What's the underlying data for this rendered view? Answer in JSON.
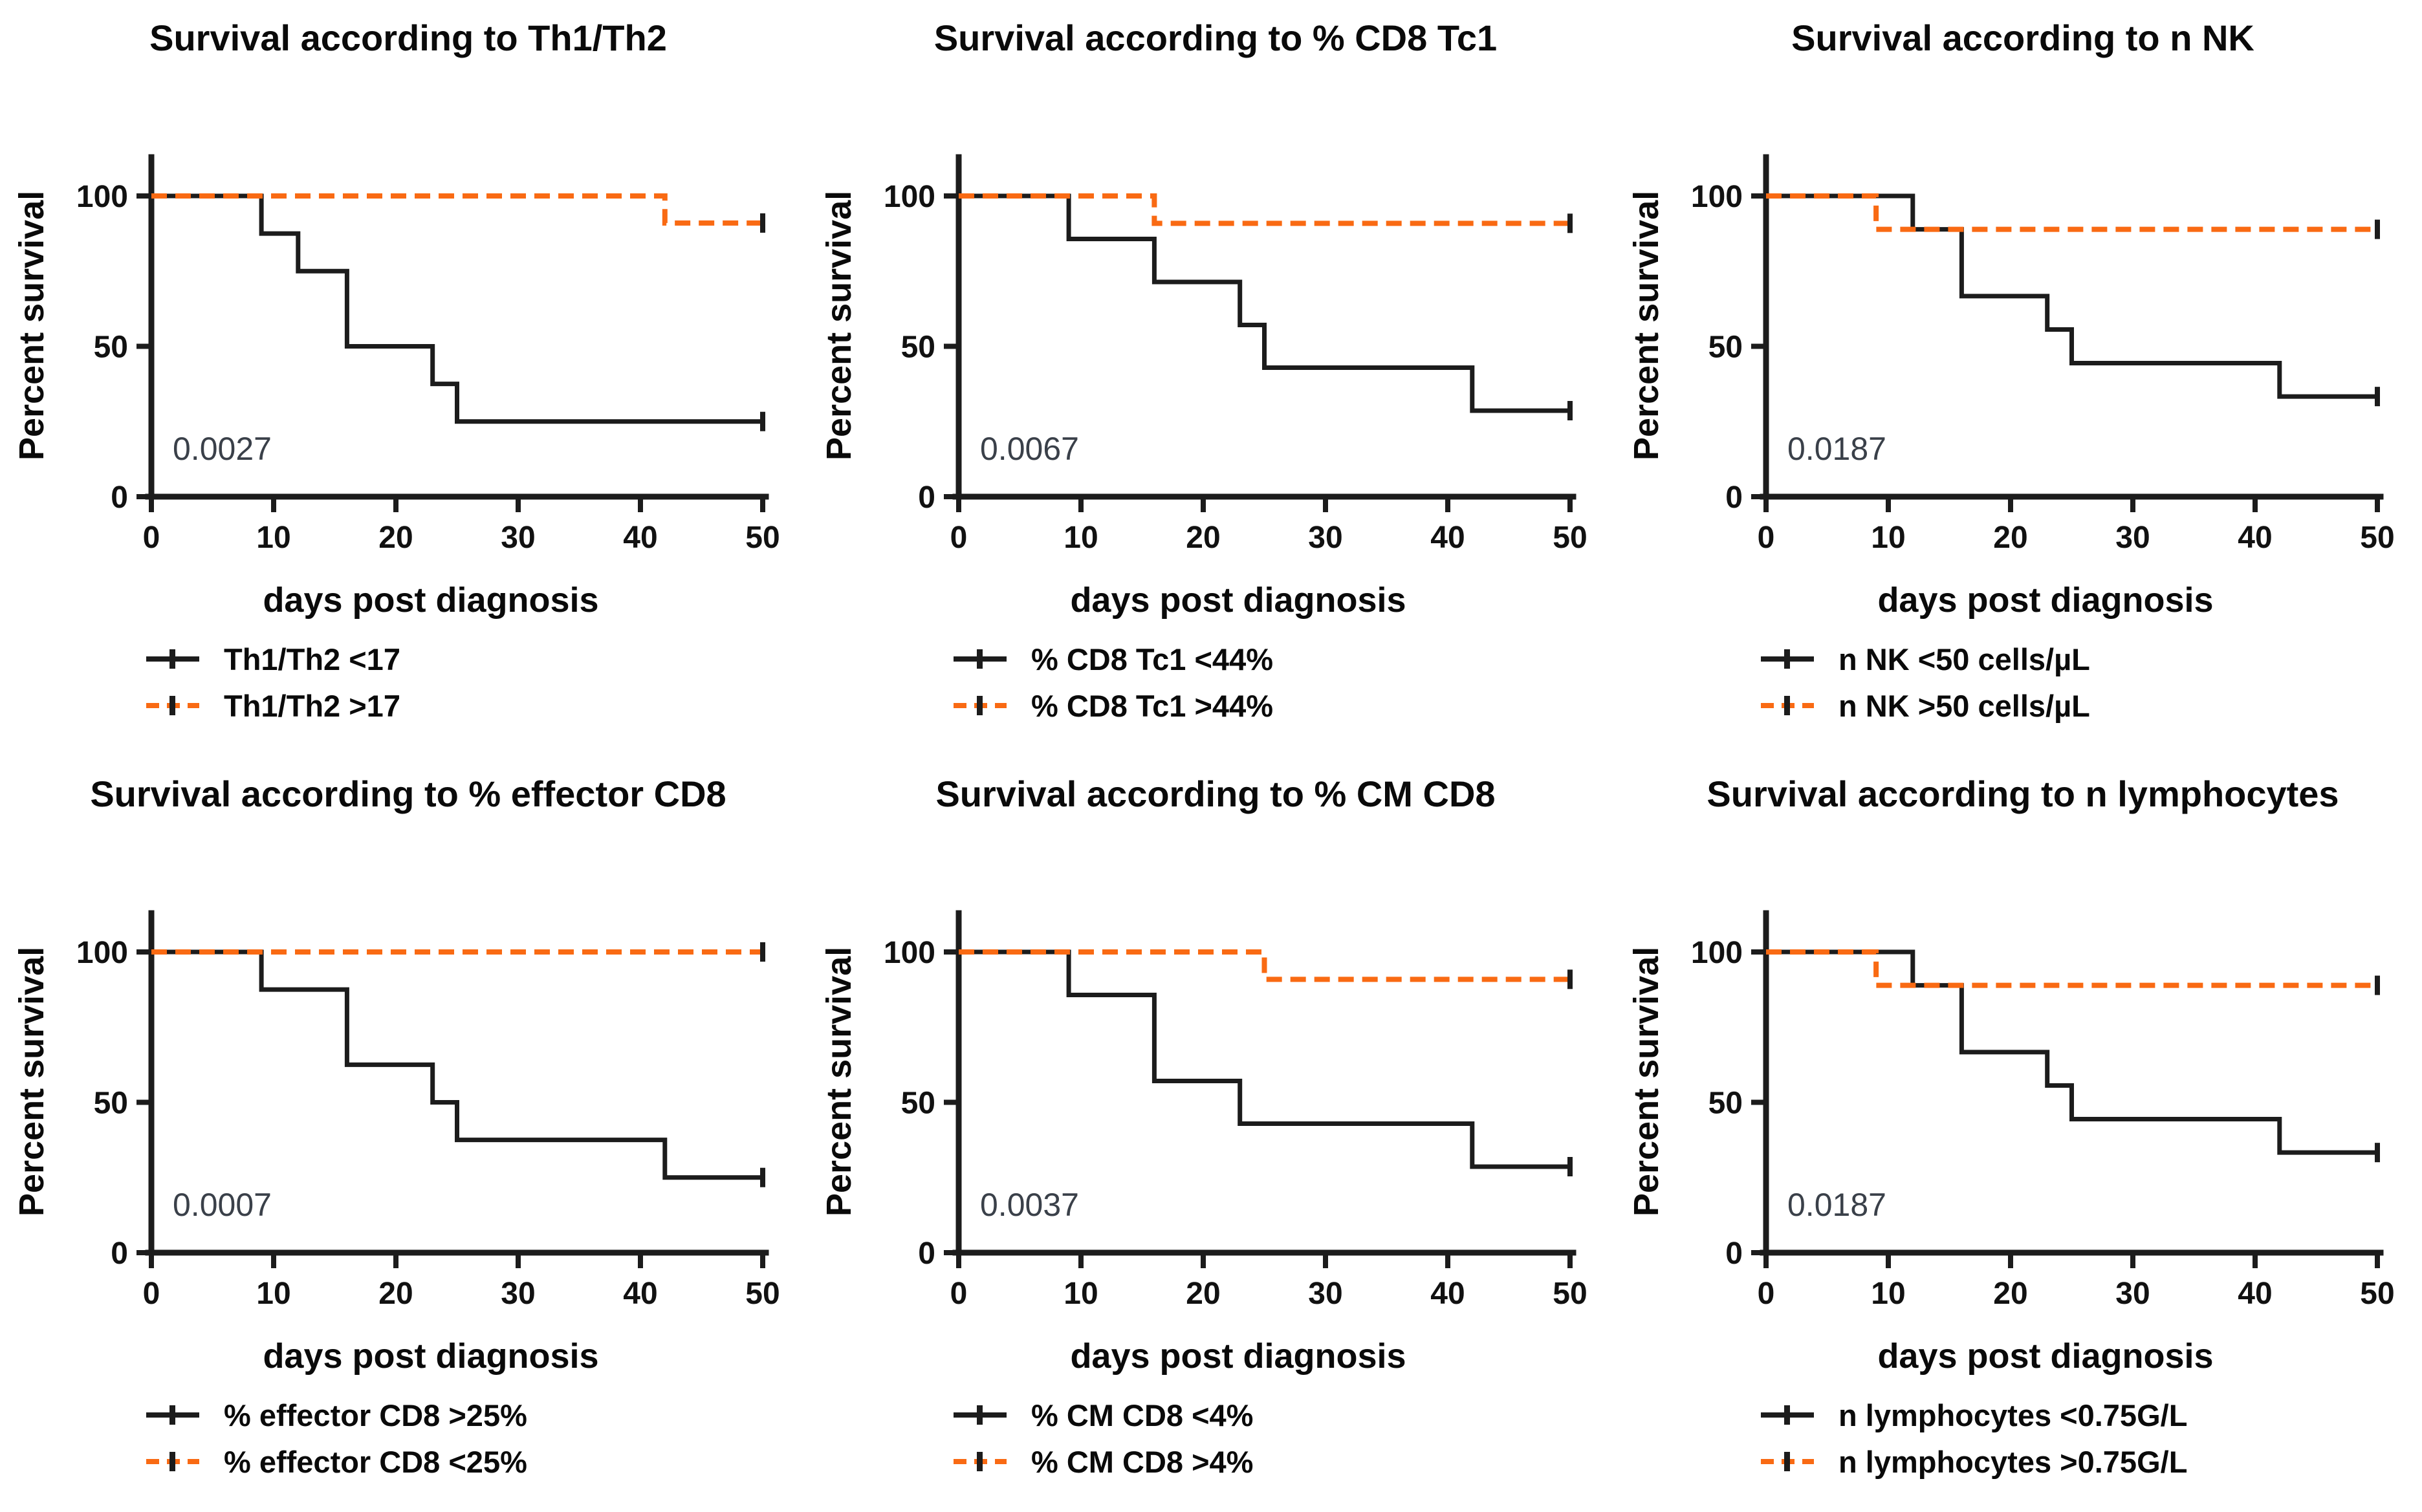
{
  "figure": {
    "background": "#ffffff"
  },
  "palette": {
    "black": "#1c1c1c",
    "orange": "#f96a13",
    "axis": "#1c1c1c",
    "pvalue_text": "#3a4049"
  },
  "axis_defaults": {
    "xlabel": "days post diagnosis",
    "ylabel": "Percent survival",
    "xticks": [
      0,
      10,
      20,
      30,
      40,
      50
    ],
    "yticks": [
      0,
      50,
      100
    ],
    "xlim": [
      0,
      50
    ],
    "ylim": [
      0,
      115
    ],
    "grid": "off",
    "legend_position": "below"
  },
  "chart_data": [
    {
      "type": "line",
      "title": "Survival according to Th1/Th2",
      "pvalue": "0.0027",
      "xlabel": "days post diagnosis",
      "ylabel": "Percent survival",
      "series": [
        {
          "name": "Th1/Th2 <17",
          "color": "black",
          "dash": false,
          "points": [
            [
              0,
              100
            ],
            [
              9,
              100
            ],
            [
              9,
              87.5
            ],
            [
              12,
              87.5
            ],
            [
              12,
              75
            ],
            [
              16,
              75
            ],
            [
              16,
              50
            ],
            [
              23,
              50
            ],
            [
              23,
              37.5
            ],
            [
              25,
              37.5
            ],
            [
              25,
              25
            ],
            [
              50,
              25
            ]
          ]
        },
        {
          "name": "Th1/Th2 >17",
          "color": "orange",
          "dash": true,
          "points": [
            [
              0,
              100
            ],
            [
              42,
              100
            ],
            [
              42,
              91
            ],
            [
              50,
              91
            ]
          ]
        }
      ]
    },
    {
      "type": "line",
      "title": "Survival according to % CD8 Tc1",
      "pvalue": "0.0067",
      "xlabel": "days post diagnosis",
      "ylabel": "Percent survival",
      "series": [
        {
          "name": "% CD8 Tc1 <44%",
          "color": "black",
          "dash": false,
          "points": [
            [
              0,
              100
            ],
            [
              9,
              100
            ],
            [
              9,
              85.7
            ],
            [
              16,
              85.7
            ],
            [
              16,
              71.4
            ],
            [
              23,
              71.4
            ],
            [
              23,
              57.1
            ],
            [
              25,
              57.1
            ],
            [
              25,
              42.9
            ],
            [
              42,
              42.9
            ],
            [
              42,
              28.6
            ],
            [
              50,
              28.6
            ]
          ]
        },
        {
          "name": "% CD8 Tc1 >44%",
          "color": "orange",
          "dash": true,
          "points": [
            [
              0,
              100
            ],
            [
              16,
              100
            ],
            [
              16,
              90.9
            ],
            [
              50,
              90.9
            ]
          ]
        }
      ]
    },
    {
      "type": "line",
      "title": "Survival according to n NK",
      "pvalue": "0.0187",
      "xlabel": "days post diagnosis",
      "ylabel": "Percent survival",
      "series": [
        {
          "name": "n NK <50 cells/µL",
          "color": "black",
          "dash": false,
          "points": [
            [
              0,
              100
            ],
            [
              12,
              100
            ],
            [
              12,
              88.9
            ],
            [
              16,
              88.9
            ],
            [
              16,
              66.7
            ],
            [
              23,
              66.7
            ],
            [
              23,
              55.6
            ],
            [
              25,
              55.6
            ],
            [
              25,
              44.4
            ],
            [
              42,
              44.4
            ],
            [
              42,
              33.3
            ],
            [
              50,
              33.3
            ]
          ]
        },
        {
          "name": "n NK >50 cells/µL",
          "color": "orange",
          "dash": true,
          "points": [
            [
              0,
              100
            ],
            [
              9,
              100
            ],
            [
              9,
              88.9
            ],
            [
              50,
              88.9
            ]
          ]
        }
      ]
    },
    {
      "type": "line",
      "title": "Survival according to % effector CD8",
      "pvalue": "0.0007",
      "xlabel": "days post diagnosis",
      "ylabel": "Percent survival",
      "series": [
        {
          "name": "% effector CD8 >25%",
          "color": "black",
          "dash": false,
          "points": [
            [
              0,
              100
            ],
            [
              9,
              100
            ],
            [
              9,
              87.5
            ],
            [
              16,
              87.5
            ],
            [
              16,
              62.5
            ],
            [
              23,
              62.5
            ],
            [
              23,
              50
            ],
            [
              25,
              50
            ],
            [
              25,
              37.5
            ],
            [
              42,
              37.5
            ],
            [
              42,
              25
            ],
            [
              50,
              25
            ]
          ]
        },
        {
          "name": "% effector CD8 <25%",
          "color": "orange",
          "dash": true,
          "points": [
            [
              0,
              100
            ],
            [
              50,
              100
            ]
          ]
        }
      ]
    },
    {
      "type": "line",
      "title": "Survival according to % CM CD8",
      "pvalue": "0.0037",
      "xlabel": "days post diagnosis",
      "ylabel": "Percent survival",
      "series": [
        {
          "name": "% CM CD8 <4%",
          "color": "black",
          "dash": false,
          "points": [
            [
              0,
              100
            ],
            [
              9,
              100
            ],
            [
              9,
              85.7
            ],
            [
              16,
              85.7
            ],
            [
              16,
              57.1
            ],
            [
              23,
              57.1
            ],
            [
              23,
              42.9
            ],
            [
              42,
              42.9
            ],
            [
              42,
              28.6
            ],
            [
              50,
              28.6
            ]
          ]
        },
        {
          "name": "% CM CD8 >4%",
          "color": "orange",
          "dash": true,
          "points": [
            [
              0,
              100
            ],
            [
              25,
              100
            ],
            [
              25,
              90.9
            ],
            [
              50,
              90.9
            ]
          ]
        }
      ]
    },
    {
      "type": "line",
      "title": "Survival according to n lymphocytes",
      "pvalue": "0.0187",
      "xlabel": "days post diagnosis",
      "ylabel": "Percent survival",
      "series": [
        {
          "name": "n lymphocytes <0.75G/L",
          "color": "black",
          "dash": false,
          "points": [
            [
              0,
              100
            ],
            [
              12,
              100
            ],
            [
              12,
              88.9
            ],
            [
              16,
              88.9
            ],
            [
              16,
              66.7
            ],
            [
              23,
              66.7
            ],
            [
              23,
              55.6
            ],
            [
              25,
              55.6
            ],
            [
              25,
              44.4
            ],
            [
              42,
              44.4
            ],
            [
              42,
              33.3
            ],
            [
              50,
              33.3
            ]
          ]
        },
        {
          "name": "n lymphocytes >0.75G/L",
          "color": "orange",
          "dash": true,
          "points": [
            [
              0,
              100
            ],
            [
              9,
              100
            ],
            [
              9,
              88.9
            ],
            [
              50,
              88.9
            ]
          ]
        }
      ]
    }
  ]
}
